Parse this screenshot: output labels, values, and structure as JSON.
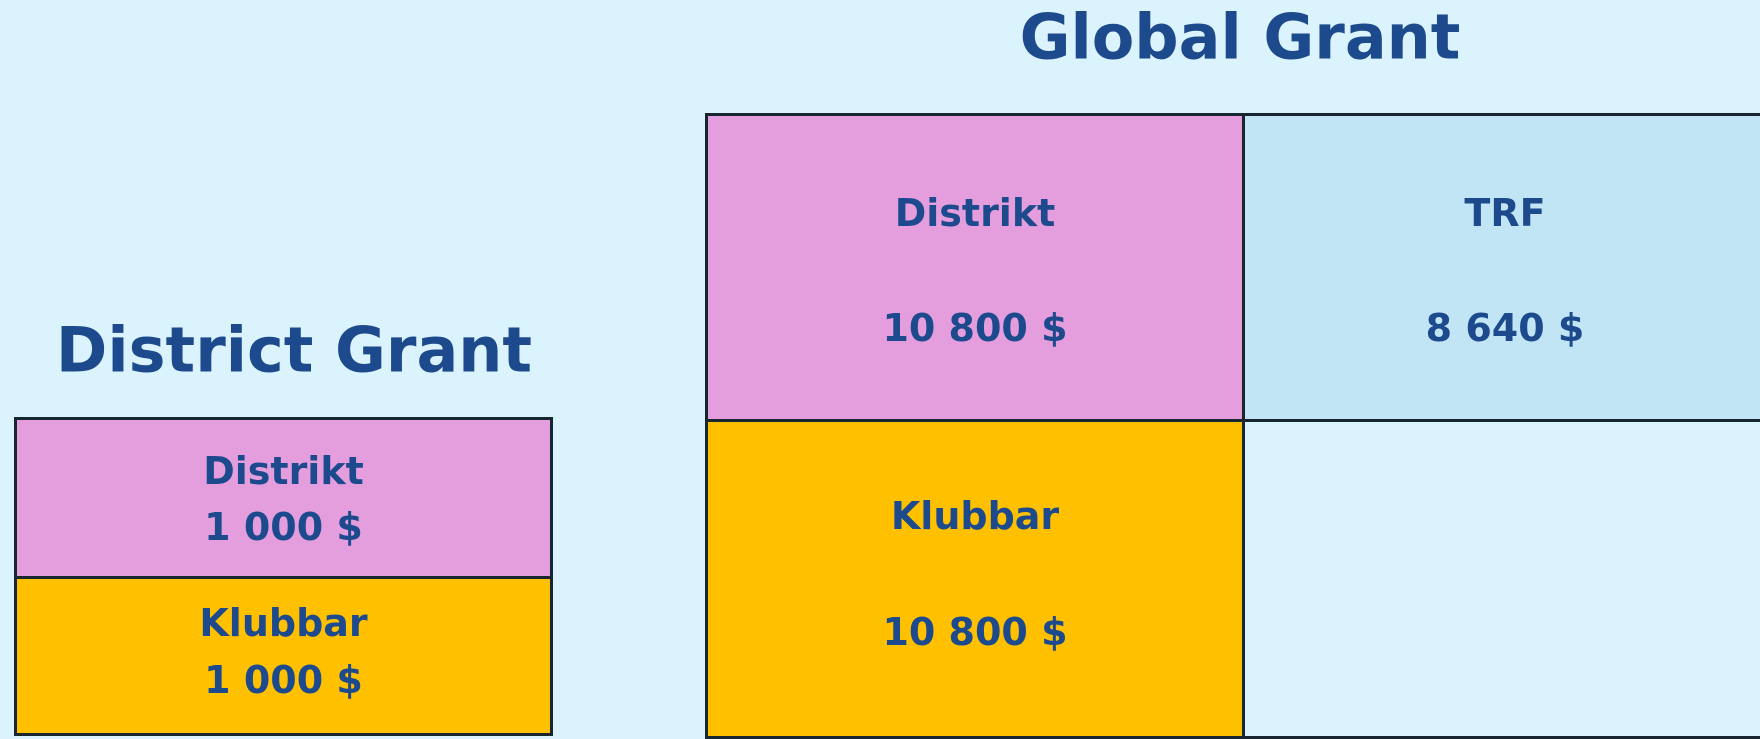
{
  "district_grant": {
    "title": "District Grant",
    "boxes": [
      {
        "label": "Distrikt",
        "amount": "1 000 $"
      },
      {
        "label": "Klubbar",
        "amount": "1 000 $"
      }
    ]
  },
  "global_grant": {
    "title": "Global Grant",
    "boxes": [
      {
        "label": "Distrikt",
        "amount": "10 800 $"
      },
      {
        "label": "TRF",
        "amount": "8 640 $"
      },
      {
        "label": "Klubbar",
        "amount": "10 800 $"
      }
    ]
  }
}
